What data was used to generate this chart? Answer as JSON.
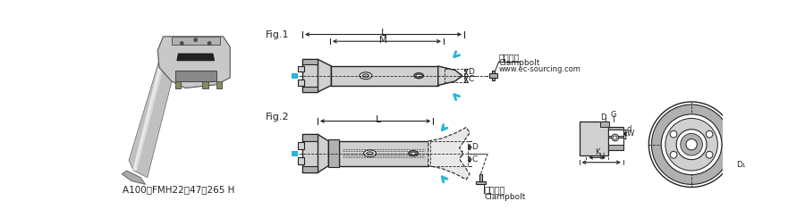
{
  "bg_color": "#ffffff",
  "fig_width": 9.0,
  "fig_height": 2.44,
  "dpi": 100,
  "bottom_text": "A100－FMH22－47－265 H",
  "fig1_label": "Fig.1",
  "fig2_label": "Fig.2",
  "label_L": "L",
  "label_M": "M",
  "label_D": "D",
  "label_C": "C",
  "label_d": "d",
  "label_G": "G",
  "label_W": "W",
  "label_K": "K",
  "label_H": "H",
  "label_D1": "D₁",
  "label_jgjz1": "紧固螺栓",
  "label_clampbolt1": "Clampbolt",
  "label_website": "www.ec-sourcing.com",
  "label_jgjz2": "紧固螺栓",
  "label_clampbolt2": "Clampbolt",
  "gray_light": "#d4d4d4",
  "gray_mid": "#a8a8a8",
  "gray_dark": "#606060",
  "cyan_color": "#2ab4d8",
  "line_color": "#222222",
  "body_gray": "#d0d0d0",
  "body_gray2": "#b0b0b0",
  "photo_bg": "#f0f0f0"
}
